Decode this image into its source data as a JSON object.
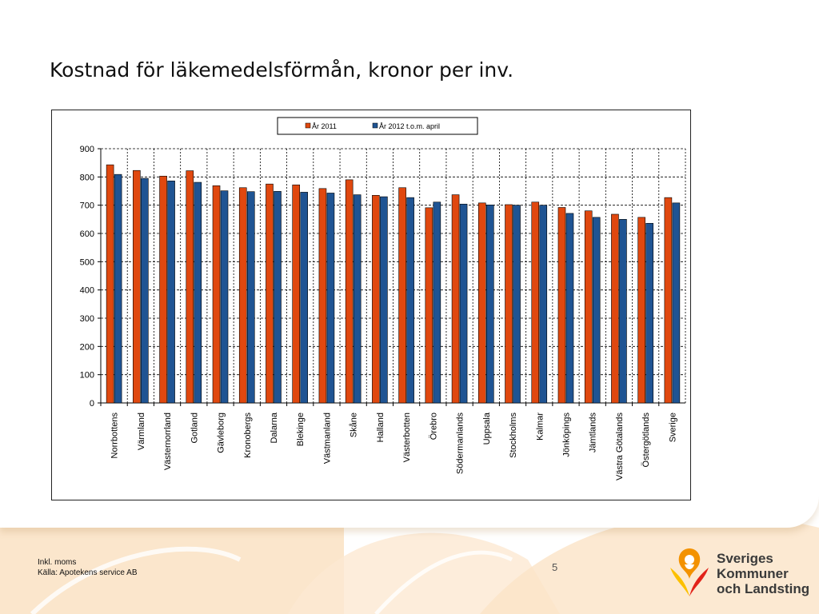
{
  "slide": {
    "title": "Kostnad för läkemedelsförmån, kronor per inv.",
    "page_number": "5",
    "footnote_lines": [
      "Inkl. moms",
      "Källa: Apotekens service  AB"
    ]
  },
  "logo": {
    "lines": [
      "Sveriges",
      "Kommuner",
      "och Landsting"
    ],
    "colors": {
      "orange": "#f39200",
      "red": "#e2231a",
      "yellow": "#fcc000"
    }
  },
  "colors": {
    "series_2011": "#e0480f",
    "series_2012": "#1f5493",
    "background_swoosh": "#fbe3c7"
  },
  "chart_data": {
    "type": "bar",
    "title": "",
    "xlabel": "",
    "ylabel": "",
    "ylim": [
      0,
      900
    ],
    "yticks": [
      0,
      100,
      200,
      300,
      400,
      500,
      600,
      700,
      800,
      900
    ],
    "grid": "dashed horizontal and vertical",
    "legend_position": "top-center",
    "categories": [
      "Norrbottens",
      "Värmland",
      "Västernorrland",
      "Gotland",
      "Gävleborg",
      "Kronobergs",
      "Dalarna",
      "Blekinge",
      "Västmanland",
      "Skåne",
      "Halland",
      "Västerbotten",
      "Örebro",
      "Södermanlands",
      "Uppsala",
      "Stockholms",
      "Kalmar",
      "Jönköpings",
      "Jämtlands",
      "Västra Götalands",
      "Östergötlands",
      "Sverige"
    ],
    "series": [
      {
        "name": "År 2011",
        "color": "#e0480f",
        "values": [
          843,
          823,
          803,
          822,
          769,
          762,
          775,
          772,
          759,
          790,
          735,
          762,
          691,
          737,
          708,
          702,
          711,
          692,
          680,
          668,
          657,
          727
        ]
      },
      {
        "name": "År 2012 t.o.m. april",
        "color": "#1f5493",
        "values": [
          809,
          795,
          786,
          781,
          751,
          748,
          749,
          746,
          743,
          737,
          730,
          727,
          711,
          704,
          701,
          700,
          700,
          671,
          657,
          650,
          636,
          708
        ]
      }
    ]
  }
}
